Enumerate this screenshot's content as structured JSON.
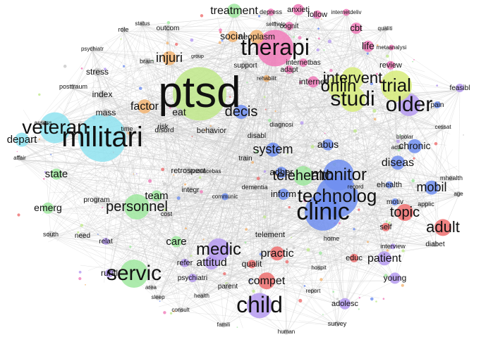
{
  "colors": {
    "cyan": "#8fe3f0",
    "green": "#bfe88a",
    "lightgreen": "#9fe79f",
    "pink": "#f07ab9",
    "red": "#ee6e6e",
    "blue": "#6e8ef0",
    "purple": "#b59af0",
    "orange": "#f2b472",
    "gray": "#c9c9c9",
    "yellowgreen": "#d7ec7a"
  },
  "terms": [
    "ptsd",
    "militari",
    "veteran",
    "therapi",
    "studi",
    "older",
    "trial",
    "onlin",
    "intervent",
    "clinic",
    "technolog",
    "monitor",
    "telehealth",
    "child",
    "servic",
    "medic",
    "personnel",
    "adult",
    "topic",
    "mobil",
    "decis",
    "factor",
    "injuri",
    "treatment",
    "social",
    "neoplasm",
    "system",
    "state",
    "depart",
    "emerg",
    "practic",
    "compet",
    "patient",
    "attitud",
    "care",
    "team",
    "diseas",
    "chronic",
    "abus",
    "adher",
    "inform",
    "index",
    "mass",
    "stress",
    "cbt",
    "life",
    "internet",
    "review",
    "anxieti",
    "follow",
    "cognit",
    "adapt",
    "support",
    "outcom",
    "status",
    "brain",
    "group",
    "disabl",
    "diagnosi",
    "behavior",
    "retrospect",
    "train",
    "integr",
    "program",
    "need",
    "south",
    "relat",
    "risk",
    "time",
    "cost",
    "self",
    "educ",
    "young",
    "adolesc",
    "survey",
    "home",
    "telement",
    "qualit",
    "psychiatri",
    "parent",
    "motiv",
    "applic",
    "ehealth",
    "mhealth",
    "diabet",
    "interview",
    "feasibl",
    "rehabilit",
    "posttraum",
    "affair",
    "assess",
    "psychiatr",
    "role",
    "rural",
    "refer",
    "disord",
    "eat",
    "dementia",
    "communic",
    "selfhelp",
    "internetbas",
    "metaanalysi",
    "qualiti",
    "pain",
    "cessat",
    "age",
    "bipolar",
    "activ",
    "record",
    "depress",
    "internetdeliv",
    "evidencebas",
    "consult",
    "health",
    "human",
    "famili",
    "sleep",
    "area",
    "hospit",
    "report"
  ]
}
